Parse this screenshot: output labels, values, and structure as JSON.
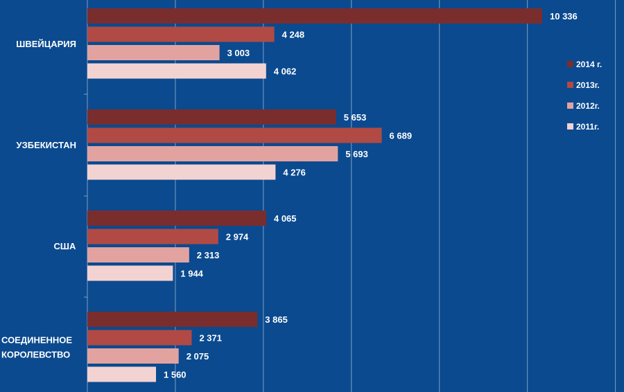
{
  "chart_data": {
    "type": "bar",
    "orientation": "horizontal",
    "title": "",
    "xlabel": "",
    "ylabel": "",
    "xlim": [
      0,
      12000
    ],
    "grid": true,
    "legend_position": "right",
    "categories": [
      "ШВЕЙЦАРИЯ",
      "УЗБЕКИСТАН",
      "США",
      "СОЕДИНЕННОЕ КОРОЛЕВСТВО"
    ],
    "category_lines": [
      [
        "ШВЕЙЦАРИЯ"
      ],
      [
        "УЗБЕКИСТАН"
      ],
      [
        "США"
      ],
      [
        "СОЕДИНЕННОЕ",
        "КОРОЛЕВСТВО"
      ]
    ],
    "series": [
      {
        "name": "2014 г.",
        "color": "#7a2d2d",
        "values": [
          10336,
          5653,
          4065,
          3865
        ],
        "labels": [
          "10 336",
          "5 653",
          "4 065",
          "3 865"
        ]
      },
      {
        "name": "2013г.",
        "color": "#b14a45",
        "values": [
          4248,
          6689,
          2974,
          2371
        ],
        "labels": [
          "4 248",
          "6 689",
          "2 974",
          "2 371"
        ]
      },
      {
        "name": "2012г.",
        "color": "#e2a3a0",
        "values": [
          3003,
          5693,
          2313,
          2075
        ],
        "labels": [
          "3 003",
          "5 693",
          "2 313",
          "2 075"
        ]
      },
      {
        "name": "2011г.",
        "color": "#f3d3d2",
        "values": [
          4062,
          4276,
          1944,
          1560
        ],
        "labels": [
          "4 062",
          "4 276",
          "1 944",
          "1 560"
        ]
      }
    ]
  },
  "colors": {
    "background": "#0b4a8f",
    "gridline": "#7f9fc4",
    "text": "#ffffff"
  }
}
